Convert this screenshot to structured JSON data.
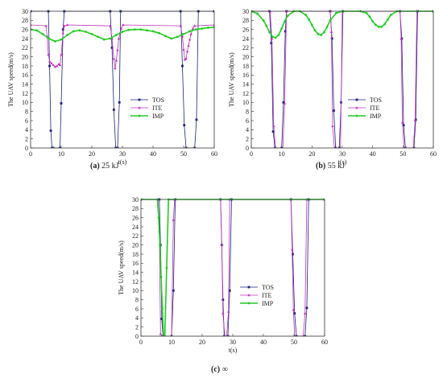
{
  "chart_data": [
    {
      "type": "line",
      "caption_label": "(a)",
      "caption_text": " 25 kJ",
      "xlabel": "t(s)",
      "ylabel": "The UAV speed(m/s)",
      "xlim": [
        0,
        60
      ],
      "ylim": [
        0,
        30
      ],
      "xticks": [
        0,
        10,
        20,
        30,
        40,
        50,
        60
      ],
      "yticks": [
        0,
        2,
        4,
        6,
        8,
        10,
        12,
        14,
        16,
        18,
        20,
        22,
        24,
        26,
        28,
        30
      ],
      "legend_position": "center-right",
      "series": [
        {
          "name": "TOS",
          "color": "#1a237e",
          "marker": "square",
          "x": [
            0,
            5.8,
            6.2,
            6.6,
            7.0,
            7.4,
            9.6,
            10.0,
            10.6,
            11.0,
            26.0,
            26.6,
            27.2,
            27.8,
            28.4,
            29.0,
            29.4,
            49.0,
            49.6,
            50.2,
            50.8,
            53.6,
            54.2,
            54.8,
            60
          ],
          "y": [
            30,
            30,
            18,
            3.8,
            0,
            0,
            0,
            9.8,
            26,
            30,
            30,
            22,
            8.4,
            0,
            0,
            10,
            30,
            30,
            18,
            5,
            0,
            0,
            6.2,
            30,
            30
          ]
        },
        {
          "name": "ITE",
          "color": "#c030c0",
          "marker": "triangle",
          "x": [
            0,
            5.0,
            5.4,
            5.8,
            6.2,
            6.8,
            7.4,
            8.0,
            8.6,
            9.2,
            9.6,
            10.0,
            10.6,
            11.0,
            12.0,
            26.0,
            26.6,
            27.2,
            27.6,
            28.0,
            28.4,
            28.8,
            29.2,
            29.6,
            30.2,
            49.0,
            49.6,
            50.0,
            50.4,
            50.8,
            51.2,
            51.6,
            52.0,
            52.4,
            53.0,
            53.6,
            60
          ],
          "y": [
            27,
            26.8,
            24.5,
            20.5,
            19,
            18.6,
            18.2,
            17.8,
            18,
            18.4,
            18.2,
            20.5,
            25.2,
            26.8,
            27,
            26.8,
            24,
            19.6,
            17.5,
            19.2,
            21.5,
            24,
            25.2,
            26.2,
            27,
            26.8,
            24.5,
            21.6,
            19.4,
            19.6,
            21.2,
            22.5,
            23.8,
            25,
            26.2,
            26.8,
            27
          ]
        },
        {
          "name": "IMP",
          "color": "#22cc22",
          "marker": "circle",
          "x": [
            0,
            2,
            4,
            6,
            8,
            10,
            12,
            14,
            16,
            18,
            20,
            22,
            24,
            26,
            28,
            30,
            32,
            34,
            36,
            38,
            40,
            42,
            44,
            46,
            48,
            50,
            52,
            54,
            56,
            58,
            60
          ],
          "y": [
            26,
            25.8,
            25,
            24,
            23.4,
            23.8,
            24.8,
            25.6,
            25.8,
            25.5,
            25.0,
            24.4,
            23.8,
            24.0,
            24.8,
            25.5,
            25.9,
            26.0,
            26.0,
            25.8,
            25.6,
            25.2,
            24.6,
            24.0,
            24.4,
            25.0,
            25.6,
            26.0,
            26.2,
            26.4,
            26.5
          ]
        }
      ]
    },
    {
      "type": "line",
      "caption_label": "(b)",
      "caption_text": " 55 kJ",
      "xlabel": "t(s)",
      "ylabel": "The UAV speed(m/s)",
      "xlim": [
        0,
        60
      ],
      "ylim": [
        0,
        30
      ],
      "xticks": [
        0,
        10,
        20,
        30,
        40,
        50,
        60
      ],
      "yticks": [
        0,
        2,
        4,
        6,
        8,
        10,
        12,
        14,
        16,
        18,
        20,
        22,
        24,
        26,
        28,
        30
      ],
      "legend_position": "center-right",
      "series": [
        {
          "name": "TOS",
          "color": "#1a237e",
          "marker": "square",
          "x": [
            0,
            6.0,
            6.6,
            7.2,
            7.8,
            10.0,
            10.6,
            11.2,
            11.6,
            26.0,
            26.6,
            27.2,
            27.8,
            29.0,
            29.6,
            30.2,
            49.0,
            49.6,
            50.2,
            50.8,
            53.6,
            54.2,
            54.8,
            60
          ],
          "y": [
            30,
            30,
            23,
            3.6,
            0,
            0,
            10,
            25.6,
            30,
            30,
            24,
            8.2,
            0,
            0,
            10,
            30,
            30,
            24,
            5,
            0,
            0,
            6.2,
            30,
            30
          ]
        },
        {
          "name": "ITE",
          "color": "#c030c0",
          "marker": "triangle",
          "x": [
            0,
            6.2,
            6.8,
            7.4,
            8.0,
            10.4,
            11.0,
            11.6,
            26.0,
            26.4,
            26.8,
            27.4,
            28.0,
            29.4,
            30.0,
            49.0,
            49.4,
            49.8,
            50.4,
            51.0,
            53.4,
            54.0,
            54.6,
            60
          ],
          "y": [
            30,
            30,
            24,
            4.8,
            0,
            0,
            9.8,
            30,
            30,
            25.5,
            4.8,
            0,
            0,
            0,
            30,
            30,
            24,
            5.6,
            0,
            0,
            0,
            6,
            30,
            30
          ]
        },
        {
          "name": "IMP",
          "color": "#22cc22",
          "marker": "circle",
          "x": [
            0,
            2,
            4,
            5,
            6,
            7,
            8,
            9,
            10,
            11,
            12,
            14,
            16,
            18,
            19,
            20,
            21,
            22,
            23,
            24,
            25,
            26,
            28,
            30,
            36,
            38,
            39,
            40,
            41,
            42,
            43,
            44,
            45,
            46,
            48,
            60
          ],
          "y": [
            30,
            29.5,
            28,
            26.8,
            25.4,
            24.4,
            24.2,
            24.8,
            26.2,
            27.8,
            29,
            30,
            30,
            29.2,
            28.2,
            27,
            25.8,
            25,
            24.8,
            25.4,
            26.6,
            28,
            29.6,
            30,
            30,
            29.6,
            28.8,
            27.8,
            27,
            26.6,
            26.6,
            27.2,
            28.2,
            29.2,
            30,
            30
          ]
        }
      ]
    },
    {
      "type": "line",
      "caption_label": "(c)",
      "caption_text": " ∞",
      "xlabel": "t(s)",
      "ylabel": "The UAV speed(m/s)",
      "xlim": [
        0,
        60
      ],
      "ylim": [
        0,
        30
      ],
      "xticks": [
        0,
        10,
        20,
        30,
        40,
        50,
        60
      ],
      "yticks": [
        0,
        2,
        4,
        6,
        8,
        10,
        12,
        14,
        16,
        18,
        20,
        22,
        24,
        26,
        28,
        30
      ],
      "legend_position": "center-right",
      "series": [
        {
          "name": "TOS",
          "color": "#1a237e",
          "marker": "square",
          "x": [
            0,
            6.0,
            6.4,
            6.8,
            7.2,
            10.0,
            10.6,
            11.2,
            26.0,
            26.4,
            26.8,
            27.2,
            28.4,
            29.0,
            29.6,
            49.0,
            49.6,
            50.2,
            50.8,
            53.6,
            54.2,
            54.8,
            60
          ],
          "y": [
            30,
            30,
            20,
            3.8,
            0,
            0,
            10,
            30,
            30,
            20,
            8,
            0,
            0,
            10,
            30,
            30,
            18,
            5,
            0,
            0,
            6.2,
            30,
            30
          ]
        },
        {
          "name": "ITE",
          "color": "#c030c0",
          "marker": "triangle",
          "x": [
            0,
            5.6,
            6.0,
            6.4,
            6.8,
            10.0,
            10.6,
            11.0,
            26.0,
            26.4,
            26.8,
            27.4,
            28.0,
            28.6,
            29.0,
            49.0,
            49.4,
            49.8,
            50.2,
            53.0,
            53.6,
            54.2,
            60
          ],
          "y": [
            30,
            30,
            23,
            0.5,
            0,
            0,
            25.5,
            30,
            30,
            20,
            5,
            0,
            0,
            5.4,
            30,
            30,
            19,
            5.8,
            0,
            0,
            5,
            30,
            30
          ]
        },
        {
          "name": "IMP",
          "color": "#22cc22",
          "marker": "circle",
          "x": [
            0,
            5.4,
            5.8,
            6.2,
            6.6,
            7.0,
            7.4,
            7.8,
            8.4,
            9.0,
            60
          ],
          "y": [
            30,
            30,
            26,
            20,
            13,
            6,
            0,
            0,
            15,
            30,
            30
          ]
        }
      ]
    }
  ]
}
